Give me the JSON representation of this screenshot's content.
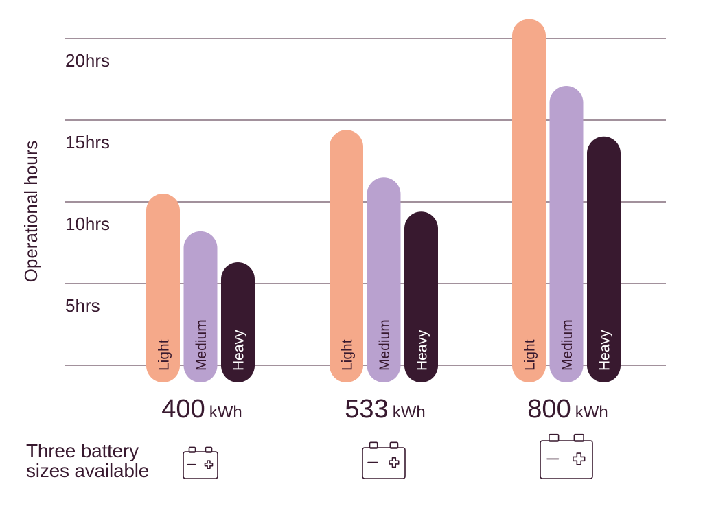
{
  "chart_data": {
    "type": "bar",
    "ylabel": "Operational hours",
    "ylim": [
      0,
      20
    ],
    "y_ticks": [
      {
        "value": 5,
        "label": "5hrs"
      },
      {
        "value": 10,
        "label": "10hrs"
      },
      {
        "value": 15,
        "label": "15hrs"
      },
      {
        "value": 20,
        "label": "20hrs"
      }
    ],
    "categories": [
      {
        "value": "400",
        "unit": "kWh"
      },
      {
        "value": "533",
        "unit": "kWh"
      },
      {
        "value": "800",
        "unit": "kWh"
      }
    ],
    "series": [
      {
        "name": "Light",
        "color": "#f5a98a",
        "label_color": "#38192f",
        "values": [
          10.5,
          14.4,
          21.2
        ]
      },
      {
        "name": "Medium",
        "color": "#b9a1cf",
        "label_color": "#38192f",
        "values": [
          8.2,
          11.5,
          17.1
        ]
      },
      {
        "name": "Heavy",
        "color": "#38192f",
        "label_color": "#ffffff",
        "values": [
          6.3,
          9.4,
          14.0
        ]
      }
    ],
    "grid": true
  },
  "footnote": {
    "line1": "Three battery",
    "line2": "sizes available",
    "icon": "battery-icon"
  },
  "colors": {
    "text": "#38192f",
    "grid": "#6b4f62"
  }
}
